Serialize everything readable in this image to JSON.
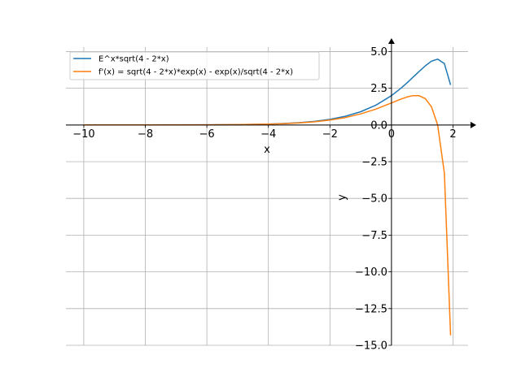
{
  "chart_data": {
    "type": "line",
    "title": "",
    "xlabel": "x",
    "ylabel": "y",
    "xlim": [
      -10.58,
      2.49
    ],
    "ylim": [
      -15.0,
      5.3
    ],
    "grid": true,
    "legend_position": "top-left",
    "x_ticks": [
      -10,
      -8,
      -6,
      -4,
      -2,
      0,
      2
    ],
    "x_tick_labels": [
      "−10",
      "−8",
      "−6",
      "−4",
      "−2",
      "0",
      "2"
    ],
    "y_ticks": [
      5.0,
      2.5,
      0.0,
      -2.5,
      -5.0,
      -7.5,
      -10.0,
      -12.5,
      -15.0
    ],
    "y_tick_labels": [
      "5.0",
      "2.5",
      "0.0",
      "−2.5",
      "−5.0",
      "−7.5",
      "−10.0",
      "−12.5",
      "−15.0"
    ],
    "x": [
      -10,
      -8,
      -6,
      -5,
      -4,
      -3.5,
      -3,
      -2.5,
      -2,
      -1.5,
      -1,
      -0.5,
      0,
      0.3,
      0.5,
      0.7,
      0.9,
      1.1,
      1.3,
      1.5,
      1.72,
      1.92
    ],
    "series": [
      {
        "name": "E^x*sqrt(4 - 2*x)",
        "color": "#1f77b4",
        "values": [
          0.0002,
          0.0015,
          0.0099,
          0.0252,
          0.0634,
          0.1002,
          0.1574,
          0.2463,
          0.3827,
          0.5903,
          0.9011,
          1.3562,
          2.0,
          2.489,
          2.856,
          3.247,
          3.648,
          4.03,
          4.342,
          4.482,
          4.179,
          2.728
        ]
      },
      {
        "name": "f'(x) = sqrt(4 - 2*x)*exp(x) - exp(x)/sqrt(4 - 2*x)",
        "color": "#ff7f0e",
        "values": [
          0.0002,
          0.0014,
          0.0093,
          0.0234,
          0.0581,
          0.0911,
          0.1417,
          0.2189,
          0.3349,
          0.506,
          0.7511,
          1.085,
          1.5,
          1.757,
          1.904,
          1.998,
          1.99,
          1.791,
          1.24,
          0.0,
          -3.285,
          -14.32
        ]
      }
    ]
  }
}
